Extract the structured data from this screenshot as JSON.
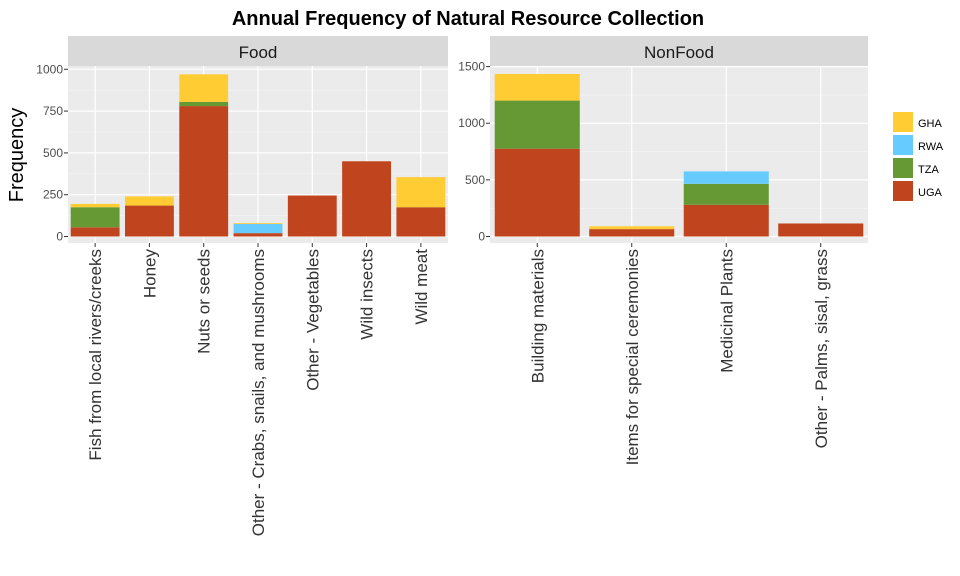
{
  "chart_data": {
    "type": "bar",
    "stacked": true,
    "title": "Annual Frequency of Natural Resource Collection",
    "ylabel": "Frequency",
    "xlabel": "",
    "grid": true,
    "legend_position": "right",
    "legend": [
      "GHA",
      "RWA",
      "TZA",
      "UGA"
    ],
    "colors": {
      "GHA": "#FFCC33",
      "RWA": "#66CCFF",
      "TZA": "#669933",
      "UGA": "#C0451F"
    },
    "facets": [
      {
        "name": "Food",
        "ylim": [
          0,
          1200
        ],
        "yticks": [
          0,
          250,
          500,
          750,
          1000
        ],
        "categories": [
          "Fish from local rivers/creeks",
          "Honey",
          "Nuts or seeds",
          "Other - Crabs, snails, and mushrooms",
          "Other - Vegetables",
          "Wild insects",
          "Wild meat"
        ],
        "series": [
          {
            "name": "UGA",
            "values": [
              55,
              185,
              780,
              20,
              245,
              450,
              175
            ]
          },
          {
            "name": "TZA",
            "values": [
              120,
              0,
              25,
              0,
              0,
              0,
              0
            ]
          },
          {
            "name": "RWA",
            "values": [
              0,
              0,
              0,
              55,
              0,
              0,
              0
            ]
          },
          {
            "name": "GHA",
            "values": [
              20,
              55,
              165,
              5,
              0,
              0,
              180
            ]
          }
        ]
      },
      {
        "name": "NonFood",
        "ylim": [
          0,
          1500
        ],
        "yticks": [
          0,
          500,
          1000,
          1500
        ],
        "categories": [
          "Building materials",
          "Items for special ceremonies",
          "Medicinal Plants",
          "Other - Palms, sisal, grass"
        ],
        "series": [
          {
            "name": "UGA",
            "values": [
              775,
              65,
              280,
              115
            ]
          },
          {
            "name": "TZA",
            "values": [
              425,
              0,
              185,
              0
            ]
          },
          {
            "name": "RWA",
            "values": [
              0,
              0,
              110,
              0
            ]
          },
          {
            "name": "GHA",
            "values": [
              235,
              25,
              0,
              0
            ]
          }
        ]
      }
    ]
  }
}
